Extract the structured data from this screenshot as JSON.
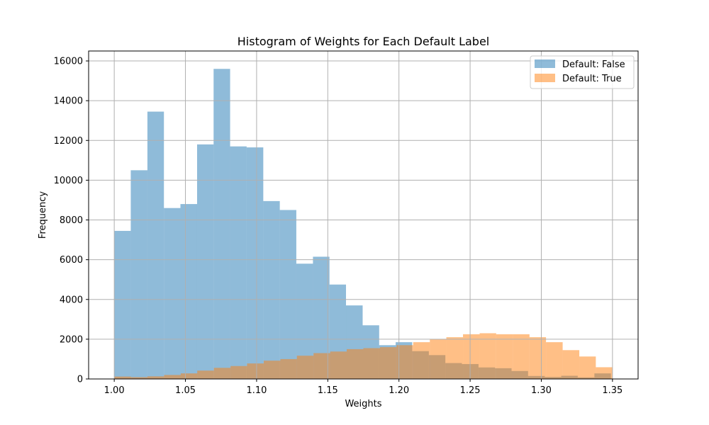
{
  "chart_data": {
    "type": "bar",
    "title": "Histogram of Weights for Each Default Label",
    "xlabel": "Weights",
    "ylabel": "Frequency",
    "xlim": [
      0.982,
      1.368
    ],
    "ylim": [
      0,
      16500
    ],
    "xticks": [
      "1.00",
      "1.05",
      "1.10",
      "1.15",
      "1.20",
      "1.25",
      "1.30",
      "1.35"
    ],
    "xtick_values": [
      1.0,
      1.05,
      1.1,
      1.15,
      1.2,
      1.25,
      1.3,
      1.35
    ],
    "yticks": [
      "0",
      "2000",
      "4000",
      "6000",
      "8000",
      "10000",
      "12000",
      "14000",
      "16000"
    ],
    "ytick_values": [
      0,
      2000,
      4000,
      6000,
      8000,
      10000,
      12000,
      14000,
      16000
    ],
    "grid": true,
    "legend_position": "top-right",
    "series": [
      {
        "name": "Default: False",
        "color": "#1f77b4",
        "alpha": 0.5,
        "bin_edges": [
          1.0,
          1.0116,
          1.0233,
          1.0349,
          1.0465,
          1.0582,
          1.0698,
          1.0814,
          1.093,
          1.1047,
          1.1163,
          1.1279,
          1.1396,
          1.1512,
          1.1628,
          1.1745,
          1.1861,
          1.1977,
          1.2093,
          1.221,
          1.2326,
          1.2442,
          1.2559,
          1.2675,
          1.2791,
          1.2907,
          1.3024,
          1.314,
          1.3256,
          1.3373,
          1.3489
        ],
        "values": [
          7450,
          10500,
          13450,
          8600,
          8800,
          11800,
          15600,
          11700,
          11650,
          8950,
          8500,
          5800,
          6150,
          4750,
          3700,
          2700,
          1700,
          1850,
          1400,
          1200,
          800,
          750,
          580,
          540,
          400,
          150,
          100,
          160,
          80,
          280
        ]
      },
      {
        "name": "Default: True",
        "color": "#ff7f0e",
        "alpha": 0.5,
        "bin_edges": [
          1.0,
          1.0117,
          1.0233,
          1.035,
          1.0467,
          1.0583,
          1.07,
          1.0817,
          1.0933,
          1.105,
          1.1167,
          1.1283,
          1.14,
          1.1517,
          1.1633,
          1.175,
          1.1867,
          1.1983,
          1.21,
          1.2217,
          1.2333,
          1.245,
          1.2567,
          1.2683,
          1.28,
          1.2917,
          1.3033,
          1.315,
          1.3267,
          1.3383,
          1.35
        ],
        "values": [
          120,
          90,
          130,
          200,
          280,
          420,
          560,
          650,
          780,
          920,
          1000,
          1170,
          1300,
          1380,
          1500,
          1550,
          1600,
          1700,
          1850,
          2000,
          2100,
          2250,
          2300,
          2250,
          2250,
          2100,
          1850,
          1450,
          1130,
          590
        ]
      }
    ]
  }
}
